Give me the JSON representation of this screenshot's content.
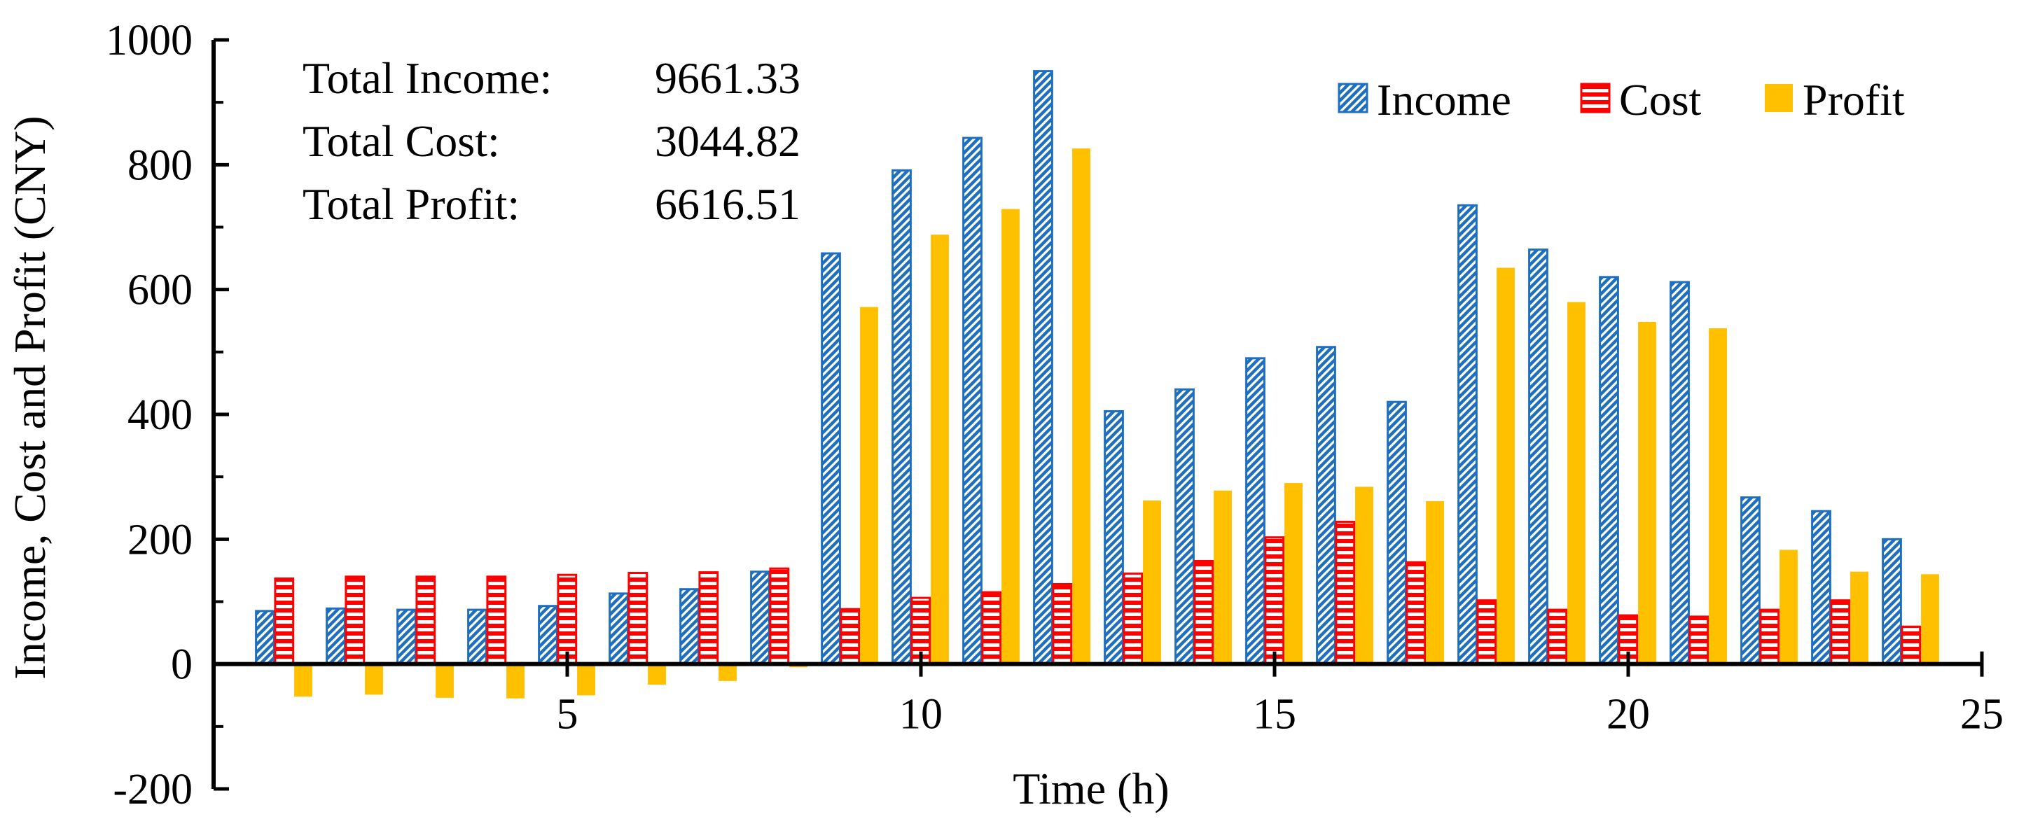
{
  "chart_data": {
    "type": "bar",
    "title": "",
    "xlabel": "Time (h)",
    "ylabel": "Income, Cost and Profit (CNY)",
    "ylim": [
      -200,
      1000
    ],
    "yticks": [
      -200,
      0,
      200,
      400,
      600,
      800,
      1000
    ],
    "xlim": [
      0,
      25
    ],
    "xticks": [
      5,
      10,
      15,
      20,
      25
    ],
    "categories": [
      1,
      2,
      3,
      4,
      5,
      6,
      7,
      8,
      9,
      10,
      11,
      12,
      13,
      14,
      15,
      16,
      17,
      18,
      19,
      20,
      21,
      22,
      23,
      24
    ],
    "series": [
      {
        "name": "Income",
        "color": "#1f6fc1",
        "pattern": "diagonal",
        "values": [
          85,
          89,
          87,
          87,
          93,
          113,
          120,
          148,
          658,
          791,
          843,
          950,
          405,
          440,
          490,
          508,
          420,
          735,
          664,
          620,
          612,
          267,
          245,
          200
        ]
      },
      {
        "name": "Cost",
        "color": "#ff0000",
        "pattern": "horizontal",
        "values": [
          137,
          140,
          140,
          140,
          143,
          146,
          147,
          153,
          88,
          106,
          115,
          128,
          145,
          165,
          203,
          228,
          163,
          102,
          87,
          78,
          76,
          87,
          102,
          60
        ]
      },
      {
        "name": "Profit",
        "color": "#ffc000",
        "pattern": "solid",
        "values": [
          -52,
          -49,
          -54,
          -55,
          -50,
          -33,
          -27,
          -5,
          572,
          688,
          729,
          826,
          262,
          278,
          290,
          284,
          261,
          635,
          580,
          548,
          538,
          183,
          148,
          144
        ]
      }
    ],
    "annotations": [
      {
        "label": "Total Income:",
        "value": "9661.33"
      },
      {
        "label": "Total Cost:",
        "value": "3044.82"
      },
      {
        "label": "Total Profit:",
        "value": "6616.51"
      }
    ],
    "legend_position": "top-right",
    "grid": false
  }
}
